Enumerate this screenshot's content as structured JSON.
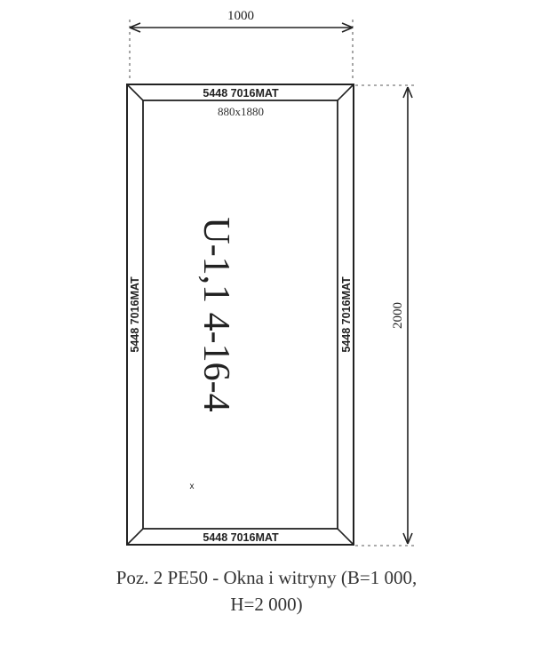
{
  "drawing": {
    "width_dim": "1000",
    "height_dim": "2000",
    "profile_top": "5448 7016MAT",
    "profile_bottom": "5448 7016MAT",
    "profile_left": "5448 7016MAT",
    "profile_right": "5448 7016MAT",
    "glass_size": "880x1880",
    "glazing": "U-1,1 4-16-4",
    "mark": "x"
  },
  "caption": {
    "line1": "Poz. 2  PE50 - Okna i witryny  (B=1 000,",
    "line2": "H=2 000)"
  }
}
